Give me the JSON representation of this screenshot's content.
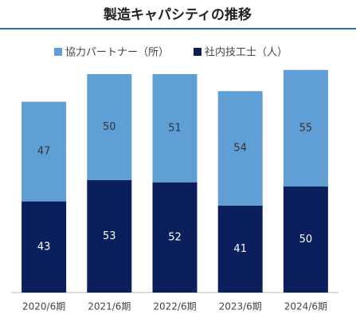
{
  "chart_data": {
    "type": "stacked_bar",
    "title": "製造キャパシティの推移",
    "categories": [
      "2020/6期",
      "2021/6期",
      "2022/6期",
      "2023/6期",
      "2024/6期"
    ],
    "series": [
      {
        "name": "社内技工士（人）",
        "color": "#0b1f5c",
        "values": [
          43,
          53,
          52,
          41,
          50
        ]
      },
      {
        "name": "協力パートナー（所）",
        "color": "#5f9fd6",
        "values": [
          47,
          50,
          51,
          54,
          55
        ]
      }
    ]
  }
}
